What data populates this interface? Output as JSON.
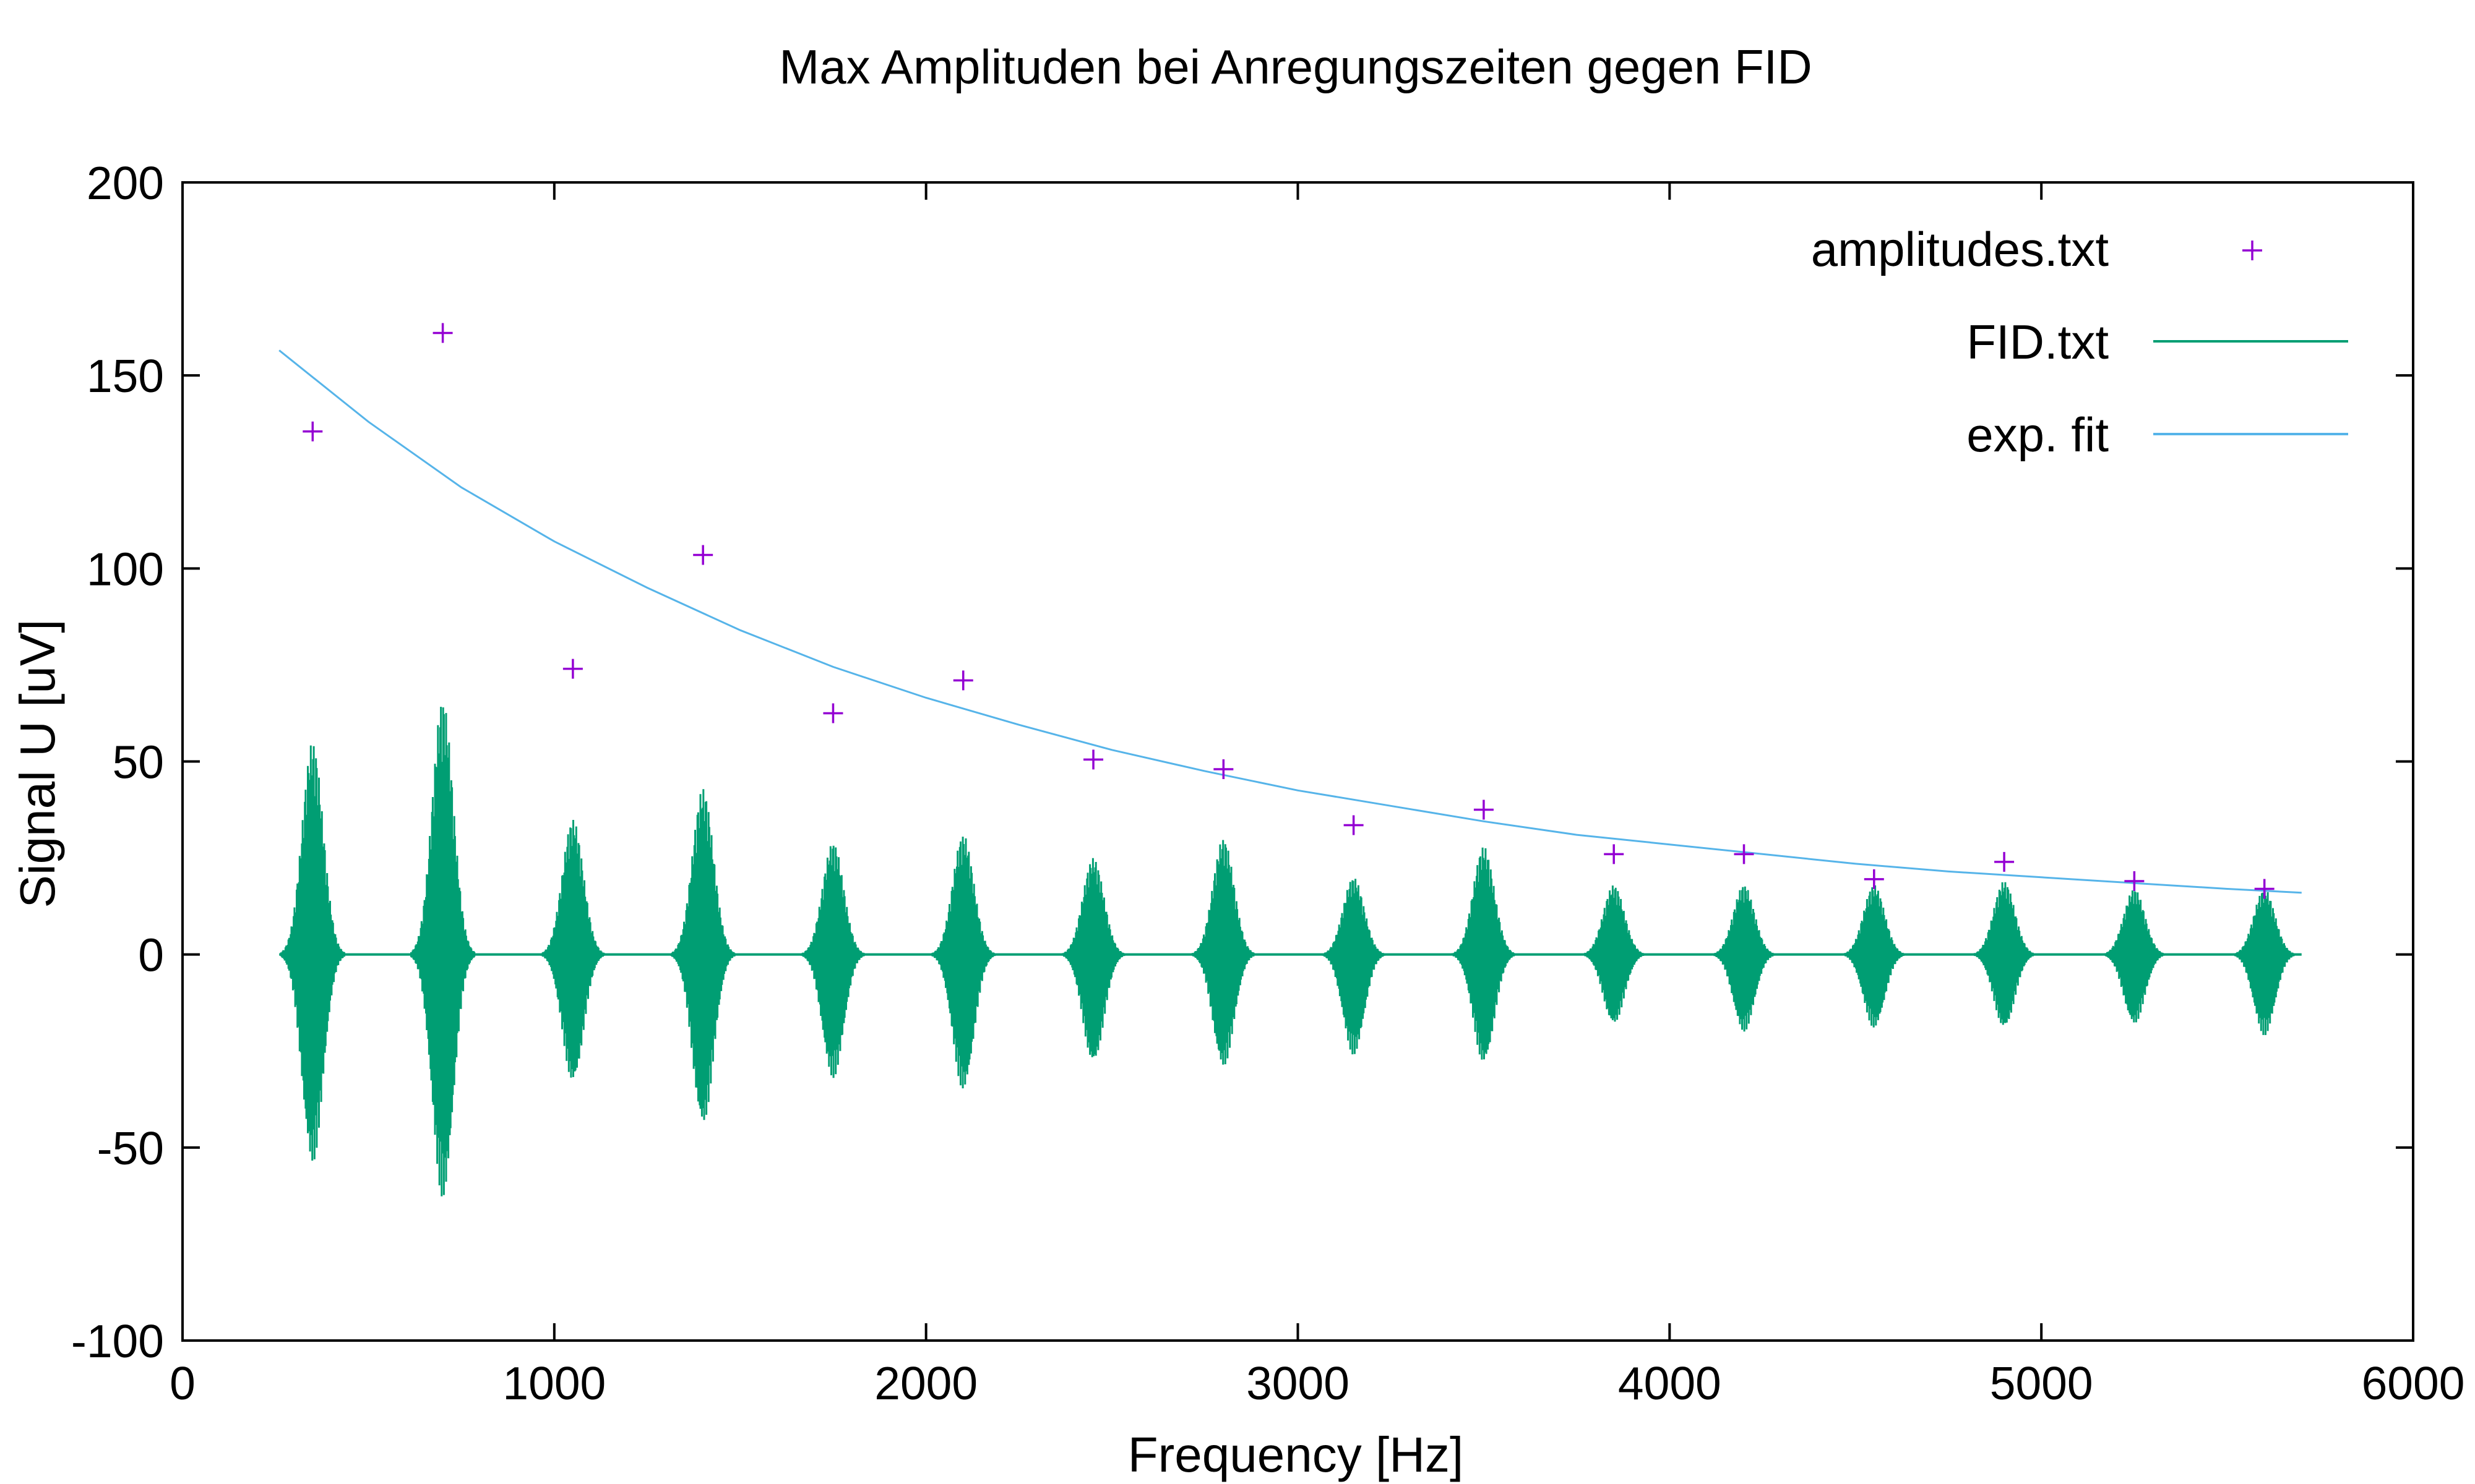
{
  "chart_data": {
    "type": "line",
    "title": "Max Amplituden bei Anregungszeiten gegen FID",
    "xlabel": "Frequency [Hz]",
    "ylabel": "Signal U [uV]",
    "xlim": [
      0,
      6000
    ],
    "ylim": [
      -100,
      200
    ],
    "x_ticks": [
      "0",
      "1000",
      "2000",
      "3000",
      "4000",
      "5000",
      "6000"
    ],
    "y_ticks": [
      "-100",
      "-50",
      "0",
      "50",
      "100",
      "150",
      "200"
    ],
    "grid": false,
    "legend_position": "top-right",
    "series": [
      {
        "name": "amplitudes.txt",
        "kind": "scatter",
        "marker": "plus",
        "color": "#9400d3",
        "x": [
          350,
          700,
          1050,
          1400,
          1750,
          2100,
          2450,
          2800,
          3150,
          3500,
          3850,
          4200,
          4550,
          4900,
          5250,
          5600
        ],
        "y": [
          135.5,
          161,
          74,
          103.5,
          62.5,
          71,
          50.5,
          48,
          33.5,
          37.5,
          26,
          26,
          19.5,
          24,
          19,
          17
        ]
      },
      {
        "name": "FID.txt",
        "kind": "bursts",
        "color": "#009e73",
        "center": [
          350,
          700,
          1050,
          1400,
          1750,
          2100,
          2450,
          2800,
          3150,
          3500,
          3850,
          4200,
          4550,
          4900,
          5250,
          5600
        ],
        "max": [
          55,
          66,
          35,
          43,
          29,
          31,
          25,
          30,
          20,
          28,
          18,
          18,
          18,
          19,
          17,
          17
        ],
        "min": [
          -54,
          -63,
          -33,
          -44,
          -32,
          -35,
          -28,
          -29,
          -26,
          -28,
          -18,
          -20,
          -19,
          -19,
          -18,
          -21
        ]
      },
      {
        "name": "exp. fit",
        "kind": "line",
        "color": "#56b4e9",
        "x": [
          260,
          500,
          750,
          1000,
          1250,
          1500,
          1750,
          2000,
          2250,
          2500,
          2750,
          3000,
          3250,
          3500,
          3750,
          4000,
          4250,
          4500,
          4750,
          5000,
          5250,
          5500,
          5700
        ],
        "y": [
          156.5,
          138,
          121,
          107,
          95,
          84,
          74.5,
          66.5,
          59.5,
          53,
          47.5,
          42.5,
          38.5,
          34.5,
          31,
          28.5,
          26,
          23.5,
          21.5,
          20,
          18.5,
          17,
          16
        ]
      }
    ]
  }
}
